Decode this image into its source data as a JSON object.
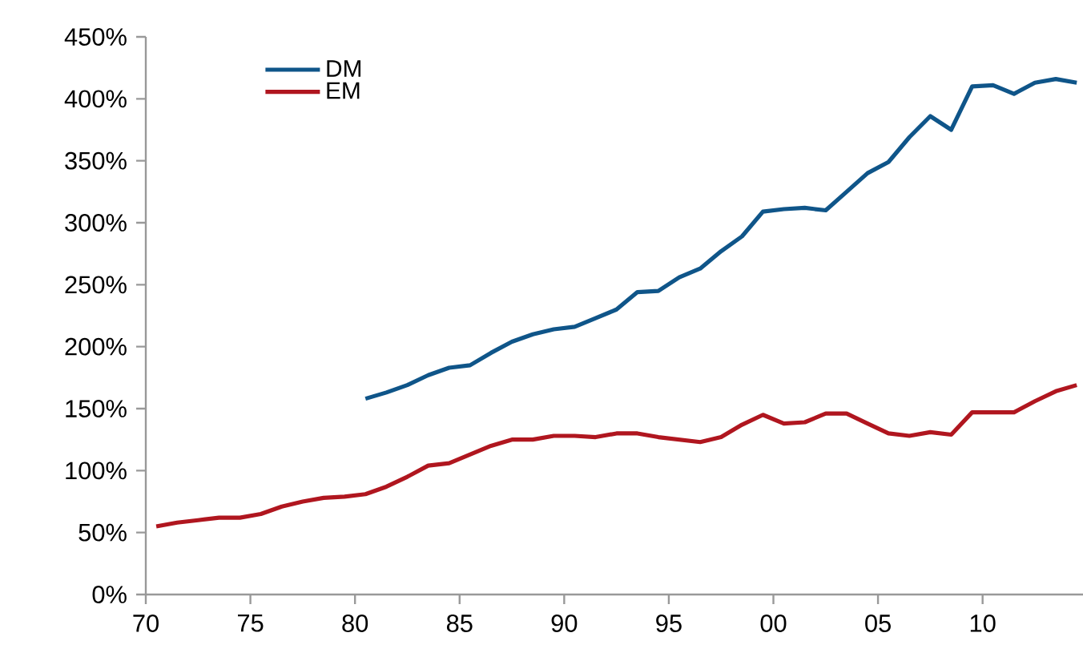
{
  "chart_data": {
    "type": "line",
    "x": [
      1970.5,
      1971.5,
      1972.5,
      1973.5,
      1974.5,
      1975.5,
      1976.5,
      1977.5,
      1978.5,
      1979.5,
      1980.5,
      1981.5,
      1982.5,
      1983.5,
      1984.5,
      1985.5,
      1986.5,
      1987.5,
      1988.5,
      1989.5,
      1990.5,
      1991.5,
      1992.5,
      1993.5,
      1994.5,
      1995.5,
      1996.5,
      1997.5,
      1998.5,
      1999.5,
      2000.5,
      2001.5,
      2002.5,
      2003.5,
      2004.5,
      2005.5,
      2006.5,
      2007.5,
      2008.5,
      2009.5,
      2010.5,
      2011.5,
      2012.5,
      2013.5,
      2014.5
    ],
    "series": [
      {
        "name": "DM",
        "color": "#0f5589",
        "x": [
          1980.5,
          1981.5,
          1982.5,
          1983.5,
          1984.5,
          1985.5,
          1986.5,
          1987.5,
          1988.5,
          1989.5,
          1990.5,
          1991.5,
          1992.5,
          1993.5,
          1994.5,
          1995.5,
          1996.5,
          1997.5,
          1998.5,
          1999.5,
          2000.5,
          2001.5,
          2002.5,
          2003.5,
          2004.5,
          2005.5,
          2006.5,
          2007.5,
          2008.5,
          2009.5,
          2010.5,
          2011.5,
          2012.5,
          2013.5,
          2014.5
        ],
        "values": [
          158,
          163,
          169,
          177,
          183,
          185,
          195,
          204,
          210,
          214,
          216,
          223,
          230,
          244,
          245,
          256,
          263,
          277,
          289,
          309,
          311,
          312,
          310,
          325,
          340,
          349,
          369,
          386,
          375,
          410,
          411,
          404,
          413,
          416,
          413
        ]
      },
      {
        "name": "EM",
        "color": "#b0161f",
        "values": [
          55,
          58,
          60,
          62,
          62,
          65,
          71,
          75,
          78,
          79,
          81,
          87,
          95,
          104,
          106,
          113,
          120,
          125,
          125,
          128,
          128,
          127,
          130,
          130,
          127,
          125,
          123,
          127,
          137,
          145,
          138,
          139,
          146,
          146,
          138,
          130,
          128,
          131,
          129,
          147,
          147,
          147,
          156,
          164,
          169
        ]
      }
    ],
    "xlim": [
      1970,
      2014.8
    ],
    "xticks": [
      {
        "value": 1970,
        "label": "70"
      },
      {
        "value": 1975,
        "label": "75"
      },
      {
        "value": 1980,
        "label": "80"
      },
      {
        "value": 1985,
        "label": "85"
      },
      {
        "value": 1990,
        "label": "90"
      },
      {
        "value": 1995,
        "label": "95"
      },
      {
        "value": 2000,
        "label": "00"
      },
      {
        "value": 2005,
        "label": "05"
      },
      {
        "value": 2010,
        "label": "10"
      }
    ],
    "ylim": [
      0,
      450
    ],
    "yticks": [
      {
        "value": 0,
        "label": "0%"
      },
      {
        "value": 50,
        "label": "50%"
      },
      {
        "value": 100,
        "label": "100%"
      },
      {
        "value": 150,
        "label": "150%"
      },
      {
        "value": 200,
        "label": "200%"
      },
      {
        "value": 250,
        "label": "250%"
      },
      {
        "value": 300,
        "label": "300%"
      },
      {
        "value": 350,
        "label": "350%"
      },
      {
        "value": 400,
        "label": "400%"
      },
      {
        "value": 450,
        "label": "450%"
      }
    ],
    "grid": false,
    "legend": "top left",
    "line_style": "solid"
  }
}
